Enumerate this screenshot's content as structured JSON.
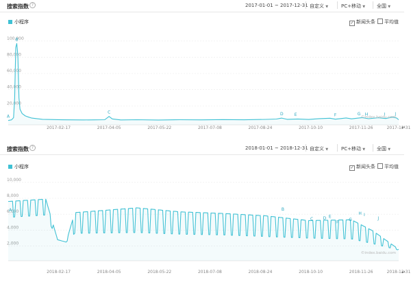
{
  "charts": [
    {
      "header": {
        "title": "搜索指数",
        "help_icon": "?",
        "date_range": "2017-01-01 ~ 2017-12-31",
        "mode_select": "自定义",
        "device_select": "PC+移动",
        "region_select": "全国"
      },
      "legend_label": "小程序",
      "checkbox_news": "新闻头条",
      "checkbox_news_checked": "✓",
      "checkbox_avg": "平均值",
      "watermark": "©index.baidu.com"
    },
    {
      "header": {
        "title": "搜索指数",
        "help_icon": "?",
        "date_range": "2018-01-01 ~ 2018-12-31",
        "mode_select": "自定义",
        "device_select": "PC+移动",
        "region_select": "全国"
      },
      "legend_label": "小程序",
      "checkbox_news": "新闻头条",
      "checkbox_news_checked": "✓",
      "checkbox_avg": "平均值",
      "watermark": "©index.baidu.com"
    }
  ],
  "colors": {
    "series": "#3fc1d4",
    "grid": "#ebebeb",
    "annotation": "#2aa7c0"
  },
  "chart_data": [
    {
      "type": "line",
      "series": [
        {
          "name": "小程序"
        }
      ],
      "y_ticks": [
        "20,000",
        "40,000",
        "60,000",
        "80,000",
        "100,000"
      ],
      "ylim": [
        0,
        110000
      ],
      "x_ticks": [
        {
          "label": "2017-02-17",
          "day": 47
        },
        {
          "label": "2017-04-05",
          "day": 94
        },
        {
          "label": "2017-05-22",
          "day": 141
        },
        {
          "label": "2017-07-08",
          "day": 188
        },
        {
          "label": "2017-08-24",
          "day": 235
        },
        {
          "label": "2017-10-10",
          "day": 282
        },
        {
          "label": "2017-11-26",
          "day": 329
        },
        {
          "label": "2017-12-31",
          "day": 364
        }
      ],
      "xlim": [
        0,
        364
      ],
      "points": [
        [
          0,
          2000
        ],
        [
          3,
          2800
        ],
        [
          5,
          5500
        ],
        [
          6,
          30000
        ],
        [
          7,
          92000
        ],
        [
          8,
          97000
        ],
        [
          9,
          82000
        ],
        [
          10,
          30000
        ],
        [
          11,
          16000
        ],
        [
          13,
          10500
        ],
        [
          16,
          7600
        ],
        [
          19,
          6200
        ],
        [
          22,
          5000
        ],
        [
          26,
          4400
        ],
        [
          32,
          3500
        ],
        [
          40,
          3200
        ],
        [
          50,
          2900
        ],
        [
          60,
          2800
        ],
        [
          70,
          2700
        ],
        [
          80,
          2800
        ],
        [
          90,
          3000
        ],
        [
          94,
          7000
        ],
        [
          97,
          4000
        ],
        [
          105,
          2700
        ],
        [
          120,
          3000
        ],
        [
          140,
          2600
        ],
        [
          160,
          3000
        ],
        [
          180,
          2800
        ],
        [
          200,
          3100
        ],
        [
          220,
          2900
        ],
        [
          240,
          3400
        ],
        [
          250,
          3800
        ],
        [
          255,
          5000
        ],
        [
          260,
          3500
        ],
        [
          270,
          3900
        ],
        [
          280,
          3300
        ],
        [
          290,
          4300
        ],
        [
          300,
          4800
        ],
        [
          305,
          3600
        ],
        [
          315,
          5200
        ],
        [
          320,
          4100
        ],
        [
          330,
          5600
        ],
        [
          336,
          4200
        ],
        [
          345,
          5400
        ],
        [
          352,
          4500
        ],
        [
          358,
          6200
        ],
        [
          362,
          5200
        ],
        [
          364,
          3000
        ]
      ],
      "annotations": [
        {
          "label": "A",
          "day": 0,
          "value": 2000
        },
        {
          "label": "B",
          "day": 8,
          "value": 97000
        },
        {
          "label": "C",
          "day": 94,
          "value": 7000
        },
        {
          "label": "D",
          "day": 255,
          "value": 5000
        },
        {
          "label": "E",
          "day": 268,
          "value": 4200
        },
        {
          "label": "F",
          "day": 305,
          "value": 3600
        },
        {
          "label": "G",
          "day": 327,
          "value": 5000
        },
        {
          "label": "H",
          "day": 334,
          "value": 4500
        },
        {
          "label": "I",
          "day": 351,
          "value": 4500
        },
        {
          "label": "J",
          "day": 361,
          "value": 5200
        }
      ]
    },
    {
      "type": "line",
      "series": [
        {
          "name": "小程序"
        }
      ],
      "y_ticks": [
        "2,000",
        "4,000",
        "6,000",
        "8,000",
        "10,000"
      ],
      "ylim": [
        500,
        10500
      ],
      "x_ticks": [
        {
          "label": "2018-02-17",
          "day": 47
        },
        {
          "label": "2018-04-05",
          "day": 94
        },
        {
          "label": "2018-05-22",
          "day": 141
        },
        {
          "label": "2018-07-08",
          "day": 188
        },
        {
          "label": "2018-08-24",
          "day": 235
        },
        {
          "label": "2018-10-10",
          "day": 282
        },
        {
          "label": "2018-11-26",
          "day": 329
        },
        {
          "label": "2018-12-31",
          "day": 364
        }
      ],
      "xlim": [
        0,
        364
      ],
      "weekly": {
        "start_day": 0,
        "end_day": 364,
        "peaks": [
          [
            0,
            7600
          ],
          [
            35,
            7900
          ],
          [
            46,
            2800
          ],
          [
            54,
            2500
          ],
          [
            62,
            6200
          ],
          [
            120,
            6800
          ],
          [
            160,
            6300
          ],
          [
            200,
            6100
          ],
          [
            240,
            5800
          ],
          [
            280,
            5200
          ],
          [
            320,
            5300
          ],
          [
            340,
            3900
          ],
          [
            364,
            1600
          ]
        ],
        "troughs": [
          [
            0,
            5600
          ],
          [
            35,
            5900
          ],
          [
            46,
            2800
          ],
          [
            54,
            2500
          ],
          [
            62,
            3600
          ],
          [
            120,
            3700
          ],
          [
            160,
            3500
          ],
          [
            200,
            3400
          ],
          [
            240,
            3200
          ],
          [
            280,
            3000
          ],
          [
            320,
            2900
          ],
          [
            340,
            2300
          ],
          [
            364,
            1500
          ]
        ]
      },
      "annotations": [
        {
          "label": "A",
          "day": 2,
          "value": 6000
        },
        {
          "label": "B",
          "day": 256,
          "value": 6100
        },
        {
          "label": "C",
          "day": 283,
          "value": 4900
        },
        {
          "label": "D",
          "day": 295,
          "value": 5000
        },
        {
          "label": "E",
          "day": 300,
          "value": 5200
        },
        {
          "label": "F",
          "day": 307,
          "value": 4500
        },
        {
          "label": "G",
          "day": 319,
          "value": 4800
        },
        {
          "label": "H",
          "day": 328,
          "value": 5600
        },
        {
          "label": "I",
          "day": 332,
          "value": 5400
        },
        {
          "label": "J",
          "day": 345,
          "value": 5000
        }
      ]
    }
  ]
}
